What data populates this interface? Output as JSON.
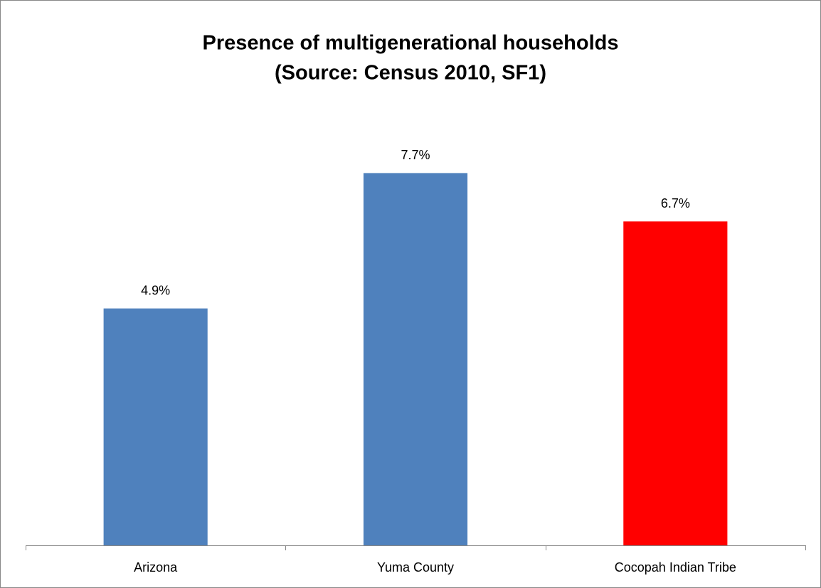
{
  "chart_data": {
    "type": "bar",
    "title": [
      "Presence of multigenerational households",
      "(Source: Census 2010, SF1)"
    ],
    "categories": [
      "Arizona",
      "Yuma County",
      "Cocopah Indian Tribe"
    ],
    "values": [
      4.9,
      7.7,
      6.7
    ],
    "value_labels": [
      "4.9%",
      "7.7%",
      "6.7%"
    ],
    "colors": [
      "#4f81bd",
      "#4f81bd",
      "#ff0000"
    ],
    "ylim": [
      0,
      9
    ]
  }
}
